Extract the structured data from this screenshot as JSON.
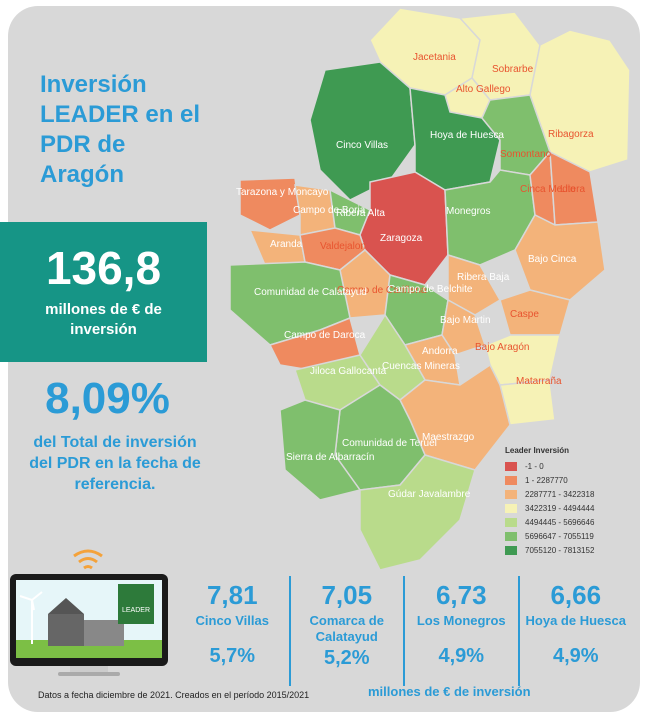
{
  "title": "Inversión LEADER en el PDR de Aragón",
  "total": {
    "value": "136,8",
    "unit": "millones de € de inversión"
  },
  "share": {
    "value": "8,09%",
    "desc": "del Total de inversión del PDR en la fecha de referencia."
  },
  "map": {
    "regions": [
      "Jacetania",
      "Sobrarbe",
      "Alto Gallego",
      "Ribagorza",
      "Cinco Villas",
      "Hoya de Huesca",
      "Somontano",
      "Tarazona y Moncayo",
      "Campo de Borja",
      "Ribera Alta",
      "Cinca Medio",
      "Litera",
      "Monegros",
      "Zaragoza",
      "Aranda",
      "Valdejalon",
      "Bajo Cinca",
      "Campo de Cariñena",
      "Ribera Baja",
      "Comunidad de Calatayud",
      "Campo de Belchite",
      "Caspe",
      "Campo de Daroca",
      "Bajo Martin",
      "Bajo Aragón",
      "Andorra",
      "Jiloca Gallocanta",
      "Cuencas Mineras",
      "Matarraña",
      "Maestrazgo",
      "Comunidad de Teruel",
      "Sierra de Albarracín",
      "Gúdar Javalambre"
    ]
  },
  "legend": {
    "title": "Leader Inversión",
    "items": [
      {
        "label": "-1 - 0",
        "color": "#d9534f"
      },
      {
        "label": "1 - 2287770",
        "color": "#ef8a5f"
      },
      {
        "label": "2287771 - 3422318",
        "color": "#f3b37a"
      },
      {
        "label": "3422319 - 4494444",
        "color": "#f6f2b6"
      },
      {
        "label": "4494445 - 5696646",
        "color": "#b9db8b"
      },
      {
        "label": "5696647 - 7055119",
        "color": "#7fbf6d"
      },
      {
        "label": "7055120 - 7813152",
        "color": "#3f9a52"
      }
    ]
  },
  "stats": [
    {
      "value": "7,81",
      "name": "Cinco Villas",
      "pct": "5,7%"
    },
    {
      "value": "7,05",
      "name": "Comarca de Calatayud",
      "pct": "5,2%"
    },
    {
      "value": "6,73",
      "name": "Los Monegros",
      "pct": "4,9%"
    },
    {
      "value": "6,66",
      "name": "Hoya de Huesca",
      "pct": "4,9%"
    }
  ],
  "stats_unit": "millones de € de inversión",
  "footnote": "Datos a fecha diciembre de 2021. Creados en el período 2015/2021",
  "logo_text": "LEADER"
}
